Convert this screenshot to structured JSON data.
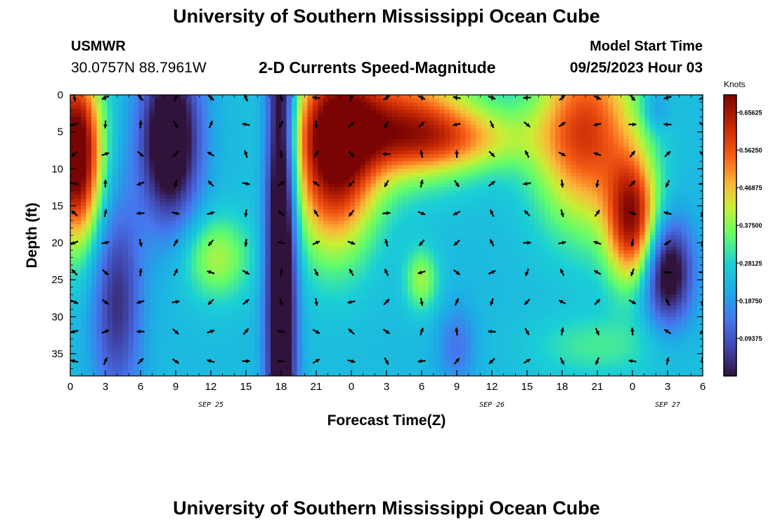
{
  "header": {
    "title": "University of Southern Mississippi Ocean Cube",
    "station": "USMWR",
    "coords": "30.0757N  88.7961W",
    "subtitle": "2-D Currents Speed-Magnitude",
    "model_start_label": "Model Start Time",
    "model_start_value": "09/25/2023 Hour 03"
  },
  "footer": {
    "title": "University of Southern Mississippi Ocean Cube"
  },
  "colorbar": {
    "unit": "Knots",
    "labels": [
      "0.65625",
      "0.56250",
      "0.46875",
      "0.37500",
      "0.28125",
      "0.18750",
      "0.09375"
    ],
    "label_values": [
      0.65625,
      0.5625,
      0.46875,
      0.375,
      0.28125,
      0.1875,
      0.09375
    ],
    "min": 0.0,
    "max": 0.7
  },
  "chart_data": {
    "type": "heatmap",
    "title": "2-D Currents Speed-Magnitude",
    "xlabel": "Forecast Time(Z)",
    "ylabel": "Depth (ft)",
    "xlim": [
      0,
      54
    ],
    "ylim": [
      38,
      0
    ],
    "x_ticks": [
      0,
      3,
      6,
      9,
      12,
      15,
      18,
      21,
      24,
      27,
      30,
      33,
      36,
      39,
      42,
      45,
      48,
      51,
      54
    ],
    "x_tick_labels": [
      "0",
      "3",
      "6",
      "9",
      "12",
      "15",
      "18",
      "21",
      "0",
      "3",
      "6",
      "9",
      "12",
      "15",
      "18",
      "21",
      "0",
      "3",
      "6"
    ],
    "y_ticks": [
      0,
      5,
      10,
      15,
      20,
      25,
      30,
      35
    ],
    "y_tick_labels": [
      "0",
      "5",
      "10",
      "15",
      "20",
      "25",
      "30",
      "35"
    ],
    "date_labels": [
      {
        "x": 12,
        "text": "SEP 25"
      },
      {
        "x": 36,
        "text": "SEP 26"
      },
      {
        "x": 51,
        "text": "SEP 27"
      }
    ],
    "vector_times": [
      0,
      3,
      6,
      9,
      12,
      15,
      18,
      21,
      24,
      27,
      30,
      33,
      36,
      39,
      42,
      45,
      48,
      51,
      54
    ],
    "vector_depths": [
      0,
      4,
      8,
      12,
      16,
      20,
      24,
      28,
      32,
      36
    ],
    "speed_features": [
      {
        "t": 0.5,
        "d": 8,
        "st": 1.5,
        "sd": 8,
        "v": 0.55
      },
      {
        "t": 8.5,
        "d": 6,
        "st": 1.8,
        "sd": 8,
        "v": -0.35
      },
      {
        "t": 12.5,
        "d": 22,
        "st": 2.0,
        "sd": 4,
        "v": 0.16
      },
      {
        "t": 18,
        "d": 20,
        "st": 0.9,
        "sd": 30,
        "v": -0.4
      },
      {
        "t": 22.5,
        "d": 8,
        "st": 2.5,
        "sd": 9,
        "v": 0.45
      },
      {
        "t": 28,
        "d": 3,
        "st": 4.5,
        "sd": 6,
        "v": 0.3
      },
      {
        "t": 32,
        "d": 6,
        "st": 5,
        "sd": 3,
        "v": 0.2
      },
      {
        "t": 30,
        "d": 25,
        "st": 1.0,
        "sd": 3,
        "v": 0.15
      },
      {
        "t": 33,
        "d": 34,
        "st": 1.2,
        "sd": 4,
        "v": -0.1
      },
      {
        "t": 44,
        "d": 5,
        "st": 3.0,
        "sd": 9,
        "v": 0.35
      },
      {
        "t": 48,
        "d": 17,
        "st": 1.5,
        "sd": 6,
        "v": 0.4
      },
      {
        "t": 51,
        "d": 24,
        "st": 1.5,
        "sd": 5,
        "v": -0.3
      },
      {
        "t": 50,
        "d": 2,
        "st": 0.8,
        "sd": 2,
        "v": -0.08
      },
      {
        "t": 4,
        "d": 28,
        "st": 1.5,
        "sd": 10,
        "v": -0.2
      },
      {
        "t": 45,
        "d": 34,
        "st": 4.0,
        "sd": 3,
        "v": 0.08
      }
    ]
  }
}
